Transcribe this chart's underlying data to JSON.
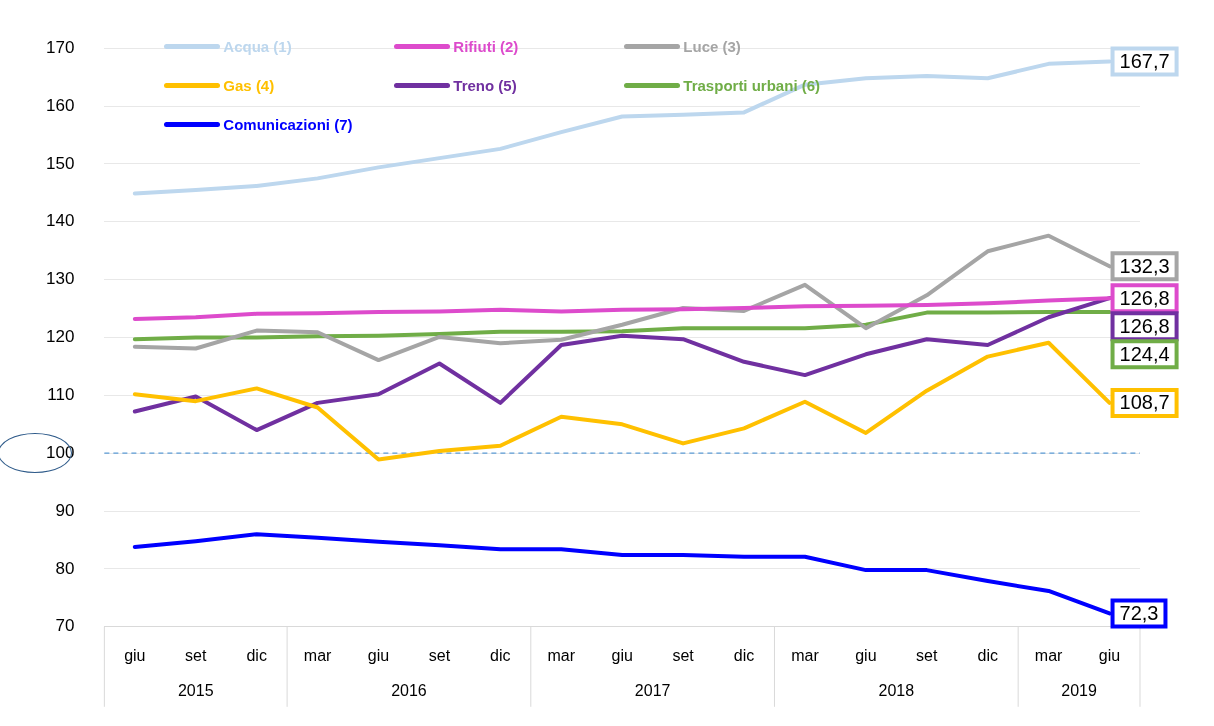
{
  "chart_data": {
    "type": "line",
    "categories": [
      "giu",
      "set",
      "dic",
      "mar",
      "giu",
      "set",
      "dic",
      "mar",
      "giu",
      "set",
      "dic",
      "mar",
      "giu",
      "set",
      "dic",
      "mar",
      "giu"
    ],
    "series": [
      {
        "name": "Acqua (1)",
        "color": "#bdd7ee",
        "values": [
          144.9,
          145.5,
          146.2,
          147.5,
          149.4,
          151,
          152.6,
          155.5,
          158.2,
          158.5,
          158.9,
          163.7,
          164.8,
          165.2,
          164.8,
          167.3,
          167.7
        ],
        "value_labels": [
          null,
          null,
          null,
          null,
          null,
          null,
          null,
          null,
          null,
          null,
          null,
          null,
          null,
          null,
          null,
          null,
          "167,7"
        ]
      },
      {
        "name": "Rifiuti (2)",
        "color": "#dd4bcc",
        "values": [
          123.2,
          123.5,
          124.1,
          124.2,
          124.4,
          124.5,
          124.8,
          124.5,
          124.8,
          124.9,
          125.1,
          125.4,
          125.5,
          125.6,
          125.9,
          126.4,
          126.8
        ],
        "value_labels": [
          null,
          null,
          null,
          null,
          null,
          null,
          null,
          null,
          null,
          null,
          null,
          null,
          null,
          null,
          null,
          null,
          "126,8"
        ]
      },
      {
        "name": "Luce (3)",
        "color": "#a5a5a5",
        "values": [
          118.4,
          118.1,
          121.2,
          120.9,
          116.1,
          120.1,
          119.0,
          119.6,
          122.2,
          125.1,
          124.6,
          129.1,
          121.6,
          127.3,
          134.9,
          137.6,
          132.3
        ],
        "value_labels": [
          null,
          null,
          null,
          null,
          null,
          null,
          null,
          null,
          null,
          null,
          null,
          null,
          null,
          null,
          null,
          null,
          "132,3"
        ]
      },
      {
        "name": "Gas (4)",
        "color": "#ffc000",
        "values": [
          110.2,
          109.0,
          111.2,
          107.9,
          98.9,
          100.4,
          101.3,
          106.3,
          105.0,
          101.7,
          104.3,
          108.9,
          103.5,
          110.8,
          116.7,
          119.1,
          108.7
        ],
        "value_labels": [
          null,
          null,
          null,
          null,
          null,
          null,
          null,
          null,
          null,
          null,
          null,
          null,
          null,
          null,
          null,
          null,
          "108,7"
        ]
      },
      {
        "name": "Treno (5)",
        "color": "#7030a0",
        "values": [
          107.2,
          109.8,
          104.0,
          108.7,
          110.2,
          115.5,
          108.7,
          118.7,
          120.3,
          119.7,
          115.8,
          113.5,
          117.1,
          119.7,
          118.7,
          123.5,
          126.8
        ],
        "value_labels": [
          null,
          null,
          null,
          null,
          null,
          null,
          null,
          null,
          null,
          null,
          null,
          null,
          null,
          null,
          null,
          null,
          "126,8"
        ]
      },
      {
        "name": "Trasporti urbani (6)",
        "color": "#70ad47",
        "values": [
          119.7,
          120.0,
          120.0,
          120.2,
          120.3,
          120.6,
          121.0,
          121.0,
          121.1,
          121.6,
          121.6,
          121.6,
          122.2,
          124.3,
          124.3,
          124.4,
          124.4
        ],
        "value_labels": [
          null,
          null,
          null,
          null,
          null,
          null,
          null,
          null,
          null,
          null,
          null,
          null,
          null,
          null,
          null,
          null,
          "124,4"
        ]
      },
      {
        "name": "Comunicazioni (7)",
        "color": "#0000ff",
        "values": [
          83.8,
          84.8,
          86.0,
          85.4,
          84.7,
          84.1,
          83.4,
          83.4,
          82.4,
          82.4,
          82.1,
          82.1,
          79.8,
          79.8,
          77.9,
          76.2,
          72.3
        ],
        "value_labels": [
          null,
          null,
          null,
          null,
          null,
          null,
          null,
          null,
          null,
          null,
          null,
          null,
          null,
          null,
          null,
          null,
          "72,3"
        ]
      }
    ],
    "annotations": [
      "2015",
      "2016",
      "2017",
      "2018",
      "2019"
    ],
    "ref_lines": [
      {
        "axis": "y",
        "value": 100,
        "color": "#5b9bd5",
        "line_style": "dashed"
      }
    ],
    "ylim": [
      70,
      170
    ],
    "yticks": [
      70,
      80,
      90,
      100,
      110,
      120,
      130,
      140,
      150,
      160,
      170
    ],
    "grid": "y",
    "legend": "top",
    "marker": "none",
    "line_style": "solid"
  }
}
